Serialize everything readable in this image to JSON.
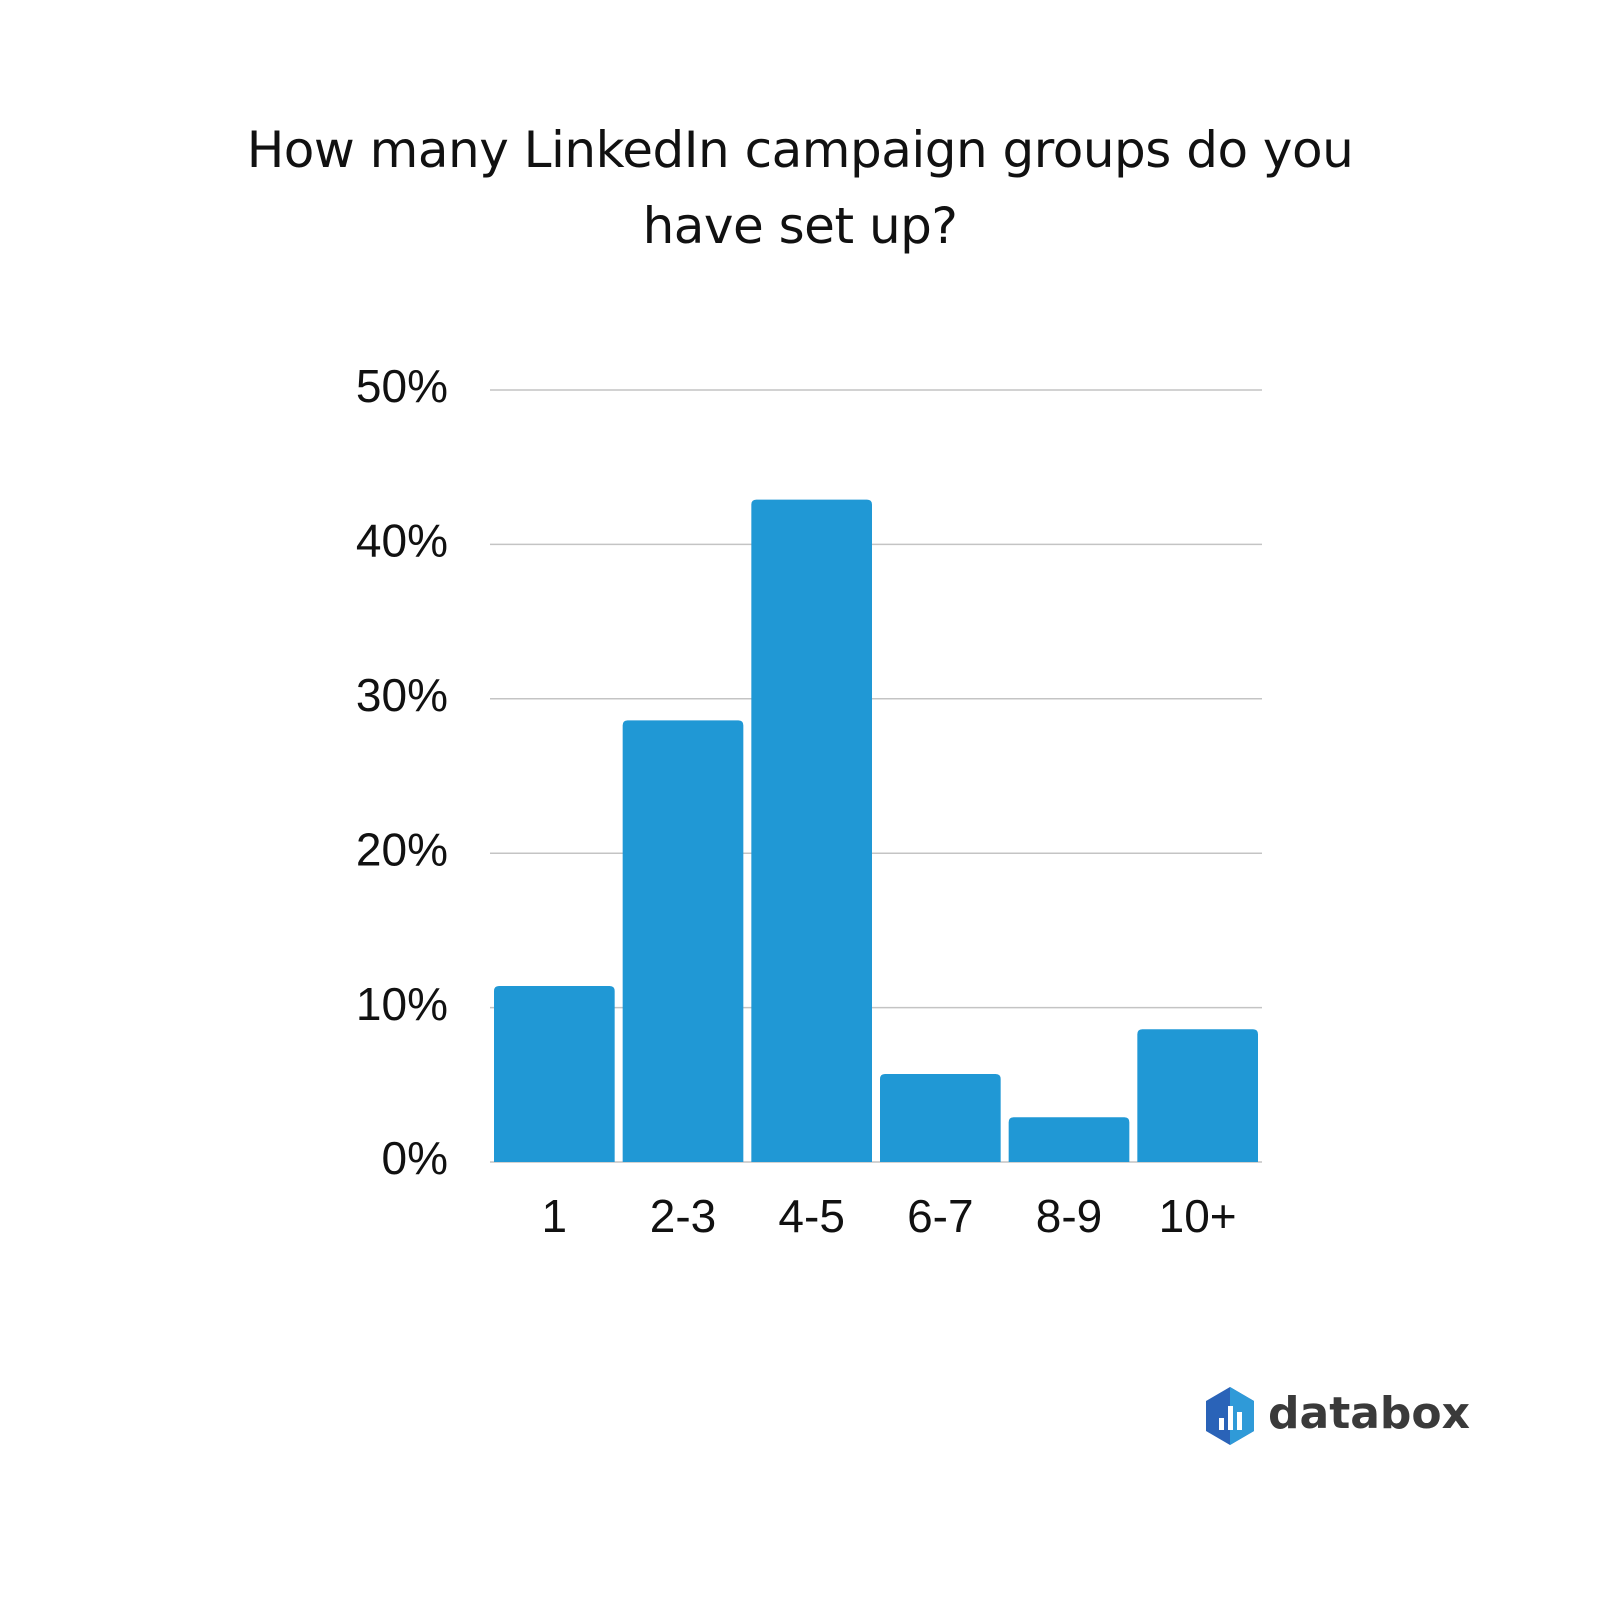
{
  "chart_data": {
    "type": "bar",
    "title": "How many LinkedIn campaign groups do you have set up?",
    "categories": [
      "1",
      "2-3",
      "4-5",
      "6-7",
      "8-9",
      "10+"
    ],
    "values": [
      11.4,
      28.6,
      42.9,
      5.7,
      2.9,
      8.6
    ],
    "color": "#2098d5",
    "ylim": [
      0,
      50
    ],
    "yticks": [
      {
        "value": 0,
        "label": "0%"
      },
      {
        "value": 10,
        "label": "10%"
      },
      {
        "value": 20,
        "label": "20%"
      },
      {
        "value": 30,
        "label": "30%"
      },
      {
        "value": 40,
        "label": "40%"
      },
      {
        "value": 50,
        "label": "50%"
      }
    ],
    "grid": true,
    "logo": "databox"
  }
}
